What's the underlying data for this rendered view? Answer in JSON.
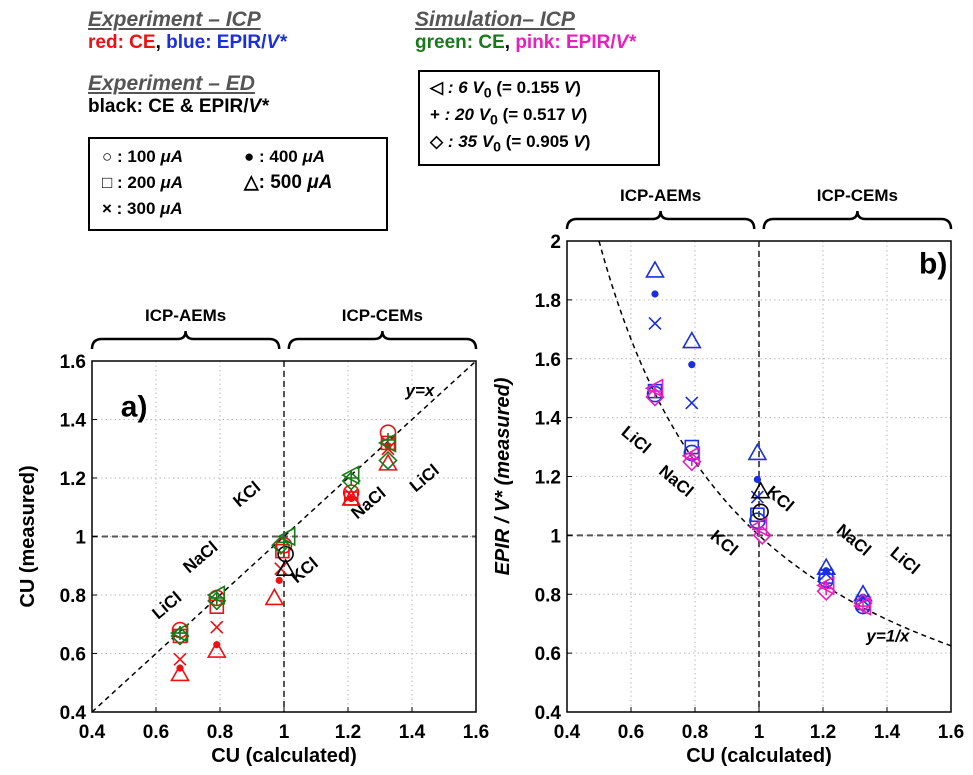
{
  "legend": {
    "exp_icp": {
      "title": "Experiment – ICP",
      "red_label": "red: CE",
      "sep": ", ",
      "blue_label": "blue: EPIR/",
      "blue_sym": "V*"
    },
    "exp_ed": {
      "title": "Experiment – ED",
      "black_label": "black: CE & EPIR/",
      "black_sym": "V*"
    },
    "sim_icp": {
      "title": "Simulation– ICP",
      "green_label": "green: CE",
      "sep": ", ",
      "pink_label": "pink: EPIR/",
      "pink_sym": "V*"
    },
    "currents": [
      {
        "symbol": "○",
        "label": ": 100",
        "unit": "μA"
      },
      {
        "symbol": "●",
        "label": ": 400",
        "unit": "μA"
      },
      {
        "symbol": "□",
        "label": ": 200",
        "unit": "μA"
      },
      {
        "symbol": "△",
        "label": ": 500",
        "unit": "μA"
      },
      {
        "symbol": "×",
        "label": ": 300",
        "unit": "μA"
      }
    ],
    "voltages": [
      {
        "symbol": "◁",
        "text": ": 6   V",
        "sub": "0",
        "paren": " (= 0.155 ",
        "unit": "V",
        "close": ")"
      },
      {
        "symbol": "+",
        "text": ": 20 V",
        "sub": "0",
        "paren": " (= 0.517 ",
        "unit": "V",
        "close": ")"
      },
      {
        "symbol": "◇",
        "text": ": 35 V",
        "sub": "0",
        "paren": " (= 0.905 ",
        "unit": "V",
        "close": ")"
      }
    ]
  },
  "colors": {
    "red": "#ee1111",
    "blue": "#1a2fe0",
    "black": "#000000",
    "green": "#1a7a1a",
    "pink": "#e81fc0"
  },
  "chart_data": [
    {
      "type": "scatter",
      "panel_label": "a)",
      "xlabel": "CU (calculated)",
      "ylabel": "CU (measured)",
      "xlim": [
        0.4,
        1.6
      ],
      "ylim": [
        0.4,
        1.6
      ],
      "xticks": [
        "0.4",
        "0.6",
        "0.8",
        "1",
        "1.2",
        "1.4",
        "1.6"
      ],
      "yticks": [
        "0.4",
        "0.6",
        "0.8",
        "1",
        "1.2",
        "1.4",
        "1.6"
      ],
      "grid": true,
      "reference_curve": {
        "label": "y=x",
        "function": "y=x"
      },
      "brackets": [
        "ICP-AEMs",
        "ICP-CEMs"
      ],
      "annotations": [
        "LiCl",
        "NaCl",
        "KCl",
        "KCl",
        "NaCl",
        "LiCl"
      ],
      "series": [
        {
          "color": "red",
          "marker": "circle",
          "points": [
            [
              0.675,
              0.68
            ],
            [
              0.79,
              0.79
            ],
            [
              1.0,
              0.97
            ],
            [
              1.21,
              1.15
            ],
            [
              1.325,
              1.355
            ]
          ]
        },
        {
          "color": "red",
          "marker": "dot",
          "points": [
            [
              0.675,
              0.55
            ],
            [
              0.79,
              0.63
            ],
            [
              0.985,
              0.85
            ],
            [
              1.21,
              1.13
            ],
            [
              1.325,
              1.31
            ]
          ]
        },
        {
          "color": "red",
          "marker": "square",
          "points": [
            [
              0.675,
              0.66
            ],
            [
              0.79,
              0.76
            ],
            [
              0.995,
              0.95
            ],
            [
              1.21,
              1.13
            ],
            [
              1.325,
              1.32
            ]
          ]
        },
        {
          "color": "red",
          "marker": "triangle",
          "points": [
            [
              0.675,
              0.53
            ],
            [
              0.79,
              0.61
            ],
            [
              0.97,
              0.79
            ],
            [
              1.21,
              1.13
            ],
            [
              1.325,
              1.25
            ]
          ]
        },
        {
          "color": "red",
          "marker": "x",
          "points": [
            [
              0.675,
              0.58
            ],
            [
              0.79,
              0.69
            ],
            [
              0.99,
              0.89
            ],
            [
              1.21,
              1.14
            ],
            [
              1.325,
              1.3
            ]
          ]
        },
        {
          "color": "black",
          "marker": "triangle",
          "points": [
            [
              1.005,
              0.89
            ]
          ]
        },
        {
          "color": "black",
          "marker": "circle",
          "points": [
            [
              1.005,
              0.94
            ]
          ]
        },
        {
          "color": "green",
          "marker": "triangle-left",
          "points": [
            [
              0.675,
              0.67
            ],
            [
              0.79,
              0.8
            ],
            [
              1.01,
              1.0
            ],
            [
              1.21,
              1.21
            ],
            [
              1.325,
              1.32
            ]
          ]
        },
        {
          "color": "green",
          "marker": "plus",
          "points": [
            [
              0.675,
              0.67
            ],
            [
              0.79,
              0.79
            ],
            [
              1.0,
              0.98
            ],
            [
              1.21,
              1.2
            ],
            [
              1.325,
              1.33
            ]
          ]
        },
        {
          "color": "green",
          "marker": "diamond",
          "points": [
            [
              0.675,
              0.66
            ],
            [
              0.79,
              0.78
            ],
            [
              0.99,
              0.97
            ],
            [
              1.21,
              1.19
            ],
            [
              1.325,
              1.26
            ]
          ]
        }
      ]
    },
    {
      "type": "scatter",
      "panel_label": "b)",
      "xlabel": "CU (calculated)",
      "ylabel": "EPIR / V* (measured)",
      "xlim": [
        0.4,
        1.6
      ],
      "ylim": [
        0.4,
        2.0
      ],
      "xticks": [
        "0.4",
        "0.6",
        "0.8",
        "1",
        "1.2",
        "1.4",
        "1.6"
      ],
      "yticks": [
        "0.4",
        "0.6",
        "0.8",
        "1",
        "1.2",
        "1.4",
        "1.6",
        "1.8",
        "2"
      ],
      "grid": true,
      "reference_curve": {
        "label": "y=1/x",
        "function": "y=1/x"
      },
      "brackets": [
        "ICP-AEMs",
        "ICP-CEMs"
      ],
      "annotations": [
        "LiCl",
        "NaCl",
        "KCl",
        "KCl",
        "NaCl",
        "LiCl"
      ],
      "series": [
        {
          "color": "blue",
          "marker": "triangle",
          "points": [
            [
              0.675,
              1.9
            ],
            [
              0.79,
              1.66
            ],
            [
              0.995,
              1.28
            ],
            [
              1.21,
              0.89
            ],
            [
              1.325,
              0.8
            ]
          ]
        },
        {
          "color": "blue",
          "marker": "dot",
          "points": [
            [
              0.675,
              1.82
            ],
            [
              0.79,
              1.58
            ],
            [
              0.995,
              1.19
            ],
            [
              1.21,
              0.88
            ],
            [
              1.325,
              0.79
            ]
          ]
        },
        {
          "color": "blue",
          "marker": "x",
          "points": [
            [
              0.675,
              1.72
            ],
            [
              0.79,
              1.45
            ],
            [
              0.995,
              1.13
            ],
            [
              1.21,
              0.87
            ],
            [
              1.325,
              0.78
            ]
          ]
        },
        {
          "color": "blue",
          "marker": "square",
          "points": [
            [
              0.675,
              1.49
            ],
            [
              0.79,
              1.3
            ],
            [
              0.995,
              1.07
            ],
            [
              1.21,
              0.86
            ],
            [
              1.325,
              0.77
            ]
          ]
        },
        {
          "color": "blue",
          "marker": "circle",
          "points": [
            [
              0.675,
              1.48
            ],
            [
              0.79,
              1.28
            ],
            [
              0.995,
              1.05
            ],
            [
              1.21,
              0.85
            ],
            [
              1.325,
              0.76
            ]
          ]
        },
        {
          "color": "black",
          "marker": "triangle",
          "points": [
            [
              1.005,
              1.15
            ]
          ]
        },
        {
          "color": "black",
          "marker": "circle",
          "points": [
            [
              1.005,
              1.08
            ]
          ]
        },
        {
          "color": "pink",
          "marker": "triangle-left",
          "points": [
            [
              0.675,
              1.5
            ],
            [
              0.79,
              1.27
            ],
            [
              1.0,
              1.03
            ],
            [
              1.21,
              0.83
            ],
            [
              1.325,
              0.76
            ]
          ]
        },
        {
          "color": "pink",
          "marker": "plus",
          "points": [
            [
              0.675,
              1.49
            ],
            [
              0.79,
              1.26
            ],
            [
              1.0,
              1.02
            ],
            [
              1.21,
              0.82
            ],
            [
              1.325,
              0.76
            ]
          ]
        },
        {
          "color": "pink",
          "marker": "diamond",
          "points": [
            [
              0.675,
              1.47
            ],
            [
              0.79,
              1.25
            ],
            [
              1.01,
              1.0
            ],
            [
              1.21,
              0.81
            ],
            [
              1.325,
              0.77
            ]
          ]
        }
      ]
    }
  ]
}
